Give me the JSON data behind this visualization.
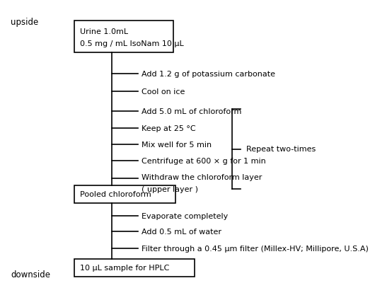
{
  "bg_color": "#ffffff",
  "upside_label": "upside",
  "downside_label": "downside",
  "box1_lines": [
    "Urine 1.0mL",
    "0.5 mg / mL IsoNam 10 μL"
  ],
  "box2_text": "Pooled chloroform",
  "box3_text": "10 μL sample for HPLC",
  "steps": [
    "Add 1.2 g of potassium carbonate",
    "Cool on ice",
    "Add 5.0 mL of chloroform",
    "Keep at 25 °C",
    "Mix well for 5 min",
    "Centrifuge at 600 × g for 1 min",
    "Withdraw the chloroform layer\n( upper layer )"
  ],
  "steps2": [
    "Evaporate completely",
    "Add 0.5 mL of water",
    "Filter through a 0.45 μm filter (Millex-HV; Millipore, U.S.A)"
  ],
  "repeat_text": "Repeat two-times",
  "font_size": 8.0,
  "label_font_size": 8.5
}
